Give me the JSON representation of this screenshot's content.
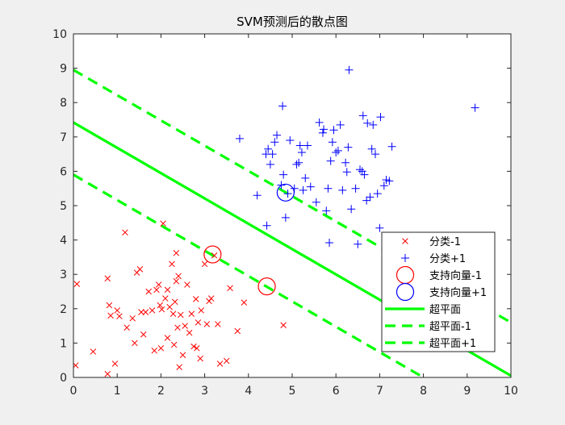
{
  "chart_data": {
    "type": "scatter",
    "title": "SVM预测后的散点图",
    "xlabel": "",
    "ylabel": "",
    "xlim": [
      0,
      10
    ],
    "ylim": [
      0,
      10
    ],
    "xticks": [
      "0",
      "1",
      "2",
      "3",
      "4",
      "5",
      "6",
      "7",
      "8",
      "9",
      "10"
    ],
    "yticks": [
      "0",
      "1",
      "2",
      "3",
      "4",
      "5",
      "6",
      "7",
      "8",
      "9",
      "10"
    ],
    "grid": false,
    "legend_position": "bottom-right",
    "colors": {
      "class_neg": "#ff0000",
      "class_pos": "#0000ff",
      "lines": "#00ff00",
      "axes_bg": "#ffffff",
      "figure_bg": "#f0f0f0"
    },
    "legend": [
      {
        "label": "分类-1",
        "marker": "x",
        "color": "#ff0000"
      },
      {
        "label": "分类+1",
        "marker": "+",
        "color": "#0000ff"
      },
      {
        "label": "支持向量-1",
        "marker": "circle",
        "color": "#ff0000"
      },
      {
        "label": "支持向量+1",
        "marker": "circle",
        "color": "#0000ff"
      },
      {
        "label": "超平面",
        "marker": "solid-line",
        "color": "#00ff00"
      },
      {
        "label": "超平面-1",
        "marker": "dashed-line",
        "color": "#00ff00"
      },
      {
        "label": "超平面+1",
        "marker": "dashed-line",
        "color": "#00ff00"
      }
    ],
    "series": [
      {
        "name": "分类-1",
        "marker": "x",
        "color": "#ff0000",
        "points": [
          [
            0.05,
            0.35
          ],
          [
            0.08,
            2.72
          ],
          [
            0.45,
            0.75
          ],
          [
            0.78,
            2.88
          ],
          [
            0.78,
            0.1
          ],
          [
            0.82,
            2.1
          ],
          [
            0.85,
            1.8
          ],
          [
            0.95,
            0.4
          ],
          [
            1.0,
            1.95
          ],
          [
            1.05,
            1.78
          ],
          [
            1.18,
            4.22
          ],
          [
            1.22,
            1.45
          ],
          [
            1.35,
            1.72
          ],
          [
            1.4,
            1.0
          ],
          [
            1.45,
            3.05
          ],
          [
            1.52,
            3.15
          ],
          [
            1.55,
            1.9
          ],
          [
            1.6,
            1.25
          ],
          [
            1.65,
            1.9
          ],
          [
            1.72,
            2.5
          ],
          [
            1.8,
            1.95
          ],
          [
            1.85,
            0.78
          ],
          [
            1.9,
            2.55
          ],
          [
            1.95,
            2.7
          ],
          [
            1.98,
            2.1
          ],
          [
            2.0,
            0.85
          ],
          [
            2.02,
            1.98
          ],
          [
            2.05,
            4.48
          ],
          [
            2.1,
            2.3
          ],
          [
            2.15,
            1.15
          ],
          [
            2.15,
            2.55
          ],
          [
            2.2,
            2.05
          ],
          [
            2.25,
            3.3
          ],
          [
            2.28,
            1.85
          ],
          [
            2.3,
            0.95
          ],
          [
            2.32,
            2.2
          ],
          [
            2.35,
            3.62
          ],
          [
            2.35,
            2.8
          ],
          [
            2.38,
            1.45
          ],
          [
            2.4,
            2.95
          ],
          [
            2.42,
            0.3
          ],
          [
            2.45,
            1.82
          ],
          [
            2.5,
            0.65
          ],
          [
            2.55,
            1.5
          ],
          [
            2.6,
            2.7
          ],
          [
            2.65,
            1.3
          ],
          [
            2.7,
            1.85
          ],
          [
            2.75,
            0.9
          ],
          [
            2.8,
            2.28
          ],
          [
            2.82,
            0.85
          ],
          [
            2.85,
            1.6
          ],
          [
            2.9,
            0.55
          ],
          [
            2.92,
            1.95
          ],
          [
            3.0,
            3.3
          ],
          [
            3.05,
            1.55
          ],
          [
            3.1,
            2.22
          ],
          [
            3.15,
            2.3
          ],
          [
            3.22,
            3.55
          ],
          [
            3.3,
            1.55
          ],
          [
            3.35,
            0.4
          ],
          [
            3.5,
            0.48
          ],
          [
            3.58,
            2.6
          ],
          [
            3.75,
            1.35
          ],
          [
            3.9,
            2.18
          ],
          [
            4.8,
            1.52
          ]
        ]
      },
      {
        "name": "分类+1",
        "marker": "+",
        "color": "#0000ff",
        "points": [
          [
            3.8,
            6.95
          ],
          [
            4.2,
            5.3
          ],
          [
            4.4,
            6.5
          ],
          [
            4.42,
            4.42
          ],
          [
            4.45,
            6.65
          ],
          [
            4.5,
            6.2
          ],
          [
            4.55,
            6.5
          ],
          [
            4.6,
            6.85
          ],
          [
            4.65,
            7.05
          ],
          [
            4.75,
            5.6
          ],
          [
            4.78,
            7.9
          ],
          [
            4.8,
            5.9
          ],
          [
            4.85,
            4.65
          ],
          [
            4.9,
            5.35
          ],
          [
            4.95,
            6.9
          ],
          [
            5.05,
            5.5
          ],
          [
            5.1,
            6.2
          ],
          [
            5.15,
            6.25
          ],
          [
            5.18,
            6.75
          ],
          [
            5.22,
            6.55
          ],
          [
            5.25,
            5.45
          ],
          [
            5.3,
            5.8
          ],
          [
            5.35,
            6.75
          ],
          [
            5.42,
            5.55
          ],
          [
            5.55,
            5.1
          ],
          [
            5.62,
            7.42
          ],
          [
            5.7,
            7.12
          ],
          [
            5.72,
            7.22
          ],
          [
            5.78,
            4.85
          ],
          [
            5.82,
            5.5
          ],
          [
            5.85,
            3.92
          ],
          [
            5.88,
            6.3
          ],
          [
            5.92,
            6.85
          ],
          [
            5.95,
            7.2
          ],
          [
            6.0,
            6.55
          ],
          [
            6.05,
            6.6
          ],
          [
            6.1,
            7.35
          ],
          [
            6.15,
            5.45
          ],
          [
            6.22,
            6.25
          ],
          [
            6.25,
            5.98
          ],
          [
            6.28,
            6.7
          ],
          [
            6.3,
            8.95
          ],
          [
            6.35,
            4.9
          ],
          [
            6.45,
            5.5
          ],
          [
            6.5,
            3.88
          ],
          [
            6.55,
            6.05
          ],
          [
            6.6,
            6.0
          ],
          [
            6.62,
            7.62
          ],
          [
            6.65,
            5.9
          ],
          [
            6.7,
            5.15
          ],
          [
            6.72,
            7.4
          ],
          [
            6.78,
            5.25
          ],
          [
            6.82,
            6.65
          ],
          [
            6.85,
            7.35
          ],
          [
            6.9,
            6.5
          ],
          [
            6.95,
            5.35
          ],
          [
            7.0,
            4.35
          ],
          [
            7.02,
            7.58
          ],
          [
            7.1,
            5.58
          ],
          [
            7.15,
            5.75
          ],
          [
            7.22,
            5.72
          ],
          [
            7.28,
            6.72
          ],
          [
            9.18,
            7.85
          ]
        ]
      },
      {
        "name": "支持向量-1",
        "marker": "circle",
        "color": "#ff0000",
        "points": [
          [
            3.18,
            3.58
          ],
          [
            4.42,
            2.65
          ]
        ]
      },
      {
        "name": "支持向量+1",
        "marker": "circle",
        "color": "#0000ff",
        "points": [
          [
            4.85,
            5.38
          ]
        ]
      }
    ],
    "lines": [
      {
        "name": "超平面",
        "style": "solid",
        "color": "#00ff00",
        "points": [
          [
            0,
            7.42
          ],
          [
            10,
            0.05
          ]
        ]
      },
      {
        "name": "超平面-1",
        "style": "dashed",
        "color": "#00ff00",
        "points": [
          [
            0,
            5.9
          ],
          [
            8.0,
            0.0
          ]
        ]
      },
      {
        "name": "超平面+1",
        "style": "dashed",
        "color": "#00ff00",
        "points": [
          [
            0,
            8.95
          ],
          [
            10,
            1.6
          ]
        ]
      }
    ]
  }
}
